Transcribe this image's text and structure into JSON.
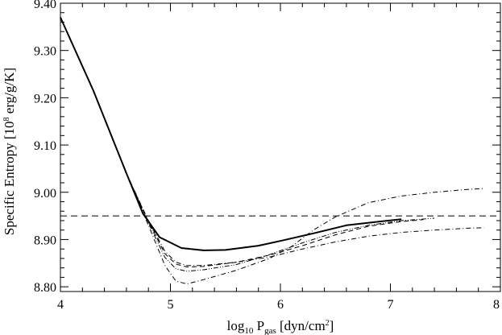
{
  "chart_data": {
    "type": "line",
    "xlabel": {
      "main": "log",
      "sub1": "10",
      "mid": " P",
      "sub2": "gas",
      "tail": " [dyn/cm",
      "sup": "2",
      "end": "]"
    },
    "ylabel": {
      "main": "Specific Entropy [10",
      "sup": "8",
      "tail": " erg/g/K]"
    },
    "xlim": [
      4,
      8
    ],
    "ylim": [
      8.79,
      9.4
    ],
    "xticks": [
      4,
      5,
      6,
      7,
      8
    ],
    "xtick_labels": [
      "4",
      "5",
      "6",
      "7",
      "8"
    ],
    "yticks": [
      8.8,
      8.9,
      9.0,
      9.1,
      9.2,
      9.3,
      9.4
    ],
    "ytick_labels": [
      "8.80",
      "8.90",
      "9.00",
      "9.10",
      "9.20",
      "9.30",
      "9.40"
    ],
    "grid": false,
    "legend": "none",
    "reference_line": {
      "y": 8.95,
      "style": "dashed"
    },
    "series": [
      {
        "style": "solid",
        "width": 2,
        "x": [
          4.0,
          4.3,
          4.6,
          4.75,
          4.9,
          5.1,
          5.3,
          5.5,
          5.8,
          6.0,
          6.3,
          6.6,
          6.9,
          7.1
        ],
        "y": [
          9.37,
          9.215,
          9.04,
          8.955,
          8.905,
          8.882,
          8.877,
          8.878,
          8.887,
          8.897,
          8.913,
          8.93,
          8.938,
          8.943
        ]
      },
      {
        "style": "dashdot",
        "width": 1,
        "x": [
          4.0,
          4.3,
          4.6,
          4.8,
          4.95,
          5.05,
          5.15,
          5.3,
          5.6,
          5.9,
          6.1,
          6.3,
          6.5,
          6.8,
          7.1,
          7.4,
          7.7,
          7.85
        ],
        "y": [
          9.37,
          9.215,
          9.04,
          8.93,
          8.845,
          8.812,
          8.806,
          8.815,
          8.835,
          8.86,
          8.885,
          8.92,
          8.948,
          8.978,
          8.992,
          9.0,
          9.006,
          9.008
        ]
      },
      {
        "style": "dashdot",
        "width": 1,
        "x": [
          4.0,
          4.3,
          4.6,
          4.8,
          4.95,
          5.05,
          5.15,
          5.3,
          5.6,
          5.9,
          6.2,
          6.5,
          6.8,
          7.1,
          7.4,
          7.7,
          7.85
        ],
        "y": [
          9.37,
          9.215,
          9.04,
          8.94,
          8.875,
          8.852,
          8.845,
          8.845,
          8.852,
          8.863,
          8.88,
          8.895,
          8.907,
          8.915,
          8.92,
          8.924,
          8.925
        ]
      },
      {
        "style": "dashdotdot",
        "width": 1,
        "x": [
          4.0,
          4.3,
          4.6,
          4.8,
          4.95,
          5.05,
          5.15,
          5.3,
          5.6,
          5.9,
          6.2,
          6.5,
          6.8,
          7.1,
          7.4
        ],
        "y": [
          9.37,
          9.215,
          9.04,
          8.935,
          8.862,
          8.838,
          8.833,
          8.836,
          8.847,
          8.868,
          8.893,
          8.915,
          8.93,
          8.94,
          8.945
        ]
      },
      {
        "style": "dashed",
        "width": 1,
        "x": [
          4.0,
          4.3,
          4.6,
          4.8,
          4.95,
          5.05,
          5.15,
          5.3,
          5.6,
          5.9,
          6.2,
          6.5,
          6.8,
          7.1,
          7.3
        ],
        "y": [
          9.37,
          9.215,
          9.04,
          8.938,
          8.87,
          8.848,
          8.842,
          8.843,
          8.852,
          8.867,
          8.887,
          8.91,
          8.928,
          8.938,
          8.942
        ]
      }
    ]
  }
}
